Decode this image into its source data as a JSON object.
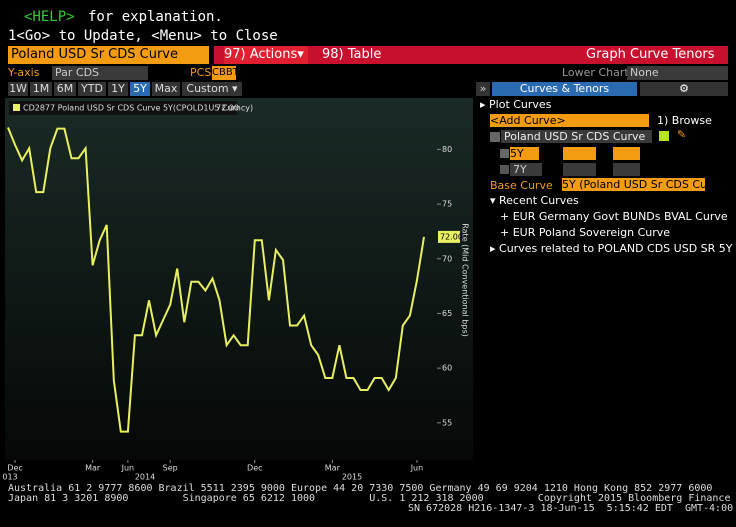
{
  "header": {
    "help_key": "<HELP>",
    "help_text": "for explanation.",
    "line2": "1<Go> to Update, <Menu> to Close"
  },
  "toolbar": {
    "security": "Poland USD Sr CDS Curve",
    "actions": "97) Actions▾",
    "table": "98) Table",
    "title": "Graph Curve Tenors"
  },
  "settings": {
    "yaxis_label": "Y-axis",
    "yaxis_value": "Par CDS",
    "pcs_label": "PCS",
    "pcs_value": "CBBT",
    "lower_chart_label": "Lower Chart",
    "lower_chart_value": "None"
  },
  "periods": [
    "1W",
    "1M",
    "6M",
    "YTD",
    "1Y",
    "5Y",
    "Max",
    "Custom ▾"
  ],
  "selected_period": "5Y",
  "panel": {
    "expand": "»",
    "tab": "Curves & Tenors",
    "gear": "⚙",
    "plot_curves": "▸ Plot Curves",
    "add_curve": "<Add Curve>",
    "browse": "1) Browse",
    "curve": "Poland USD Sr CDS Curve",
    "tenor1": "5Y",
    "tenor2": "7Y",
    "base_curve_label": "Base Curve",
    "base_curve_value": "5Y (Poland USD Sr CDS Curv",
    "recent": "▾ Recent Curves",
    "recent_items": [
      "+ EUR Germany Govt BUNDs BVAL Curve",
      "+ EUR Poland Sovereign Curve"
    ],
    "related": "▸ Curves related to POLAND CDS USD SR 5Y D"
  },
  "chart_data": {
    "type": "line",
    "y_label": "Rate (Mid Conventional bps)",
    "last_value_label": "72.00",
    "categories": [
      null,
      "Dec",
      null,
      null,
      null,
      null,
      null,
      null,
      null,
      null,
      null,
      null,
      "Mar",
      null,
      null,
      null,
      null,
      "Jun",
      null,
      null,
      null,
      null,
      null,
      "Sep",
      null,
      null,
      null,
      null,
      null,
      null,
      null,
      null,
      null,
      null,
      null,
      "Dec",
      null,
      null,
      null,
      null,
      null,
      null,
      null,
      null,
      null,
      null,
      "Mar",
      null,
      null,
      null,
      null,
      null,
      null,
      null,
      null,
      null,
      null,
      null,
      "Jun",
      null
    ],
    "year_labels": [
      "013",
      "2014",
      "2015"
    ],
    "series": [
      {
        "name": "CD2877 Poland USD Sr CDS Curve 5Y(CPOLD1U5 Curncy)",
        "color": "#e8f060",
        "values": [
          82.0,
          80.4,
          79.0,
          80.1,
          76.1,
          76.1,
          80.1,
          81.9,
          81.9,
          79.2,
          79.2,
          80.1,
          69.4,
          71.7,
          73.1,
          58.9,
          54.2,
          54.2,
          63.0,
          63.0,
          66.2,
          63.0,
          64.4,
          65.8,
          69.1,
          64.2,
          67.9,
          67.9,
          67.1,
          68.2,
          66.2,
          62.1,
          63.0,
          62.1,
          62.1,
          71.7,
          71.7,
          66.2,
          70.8,
          69.9,
          63.9,
          63.9,
          64.8,
          62.1,
          61.2,
          59.1,
          59.1,
          62.1,
          59.1,
          59.1,
          58.0,
          58.0,
          59.1,
          59.1,
          58.0,
          59.1,
          63.9,
          64.8,
          68.0,
          72.0
        ]
      }
    ],
    "ylim": [
      51.6,
      84.7
    ],
    "yticks": [
      55,
      60,
      65,
      70,
      75,
      80
    ],
    "grid": false
  }
}
